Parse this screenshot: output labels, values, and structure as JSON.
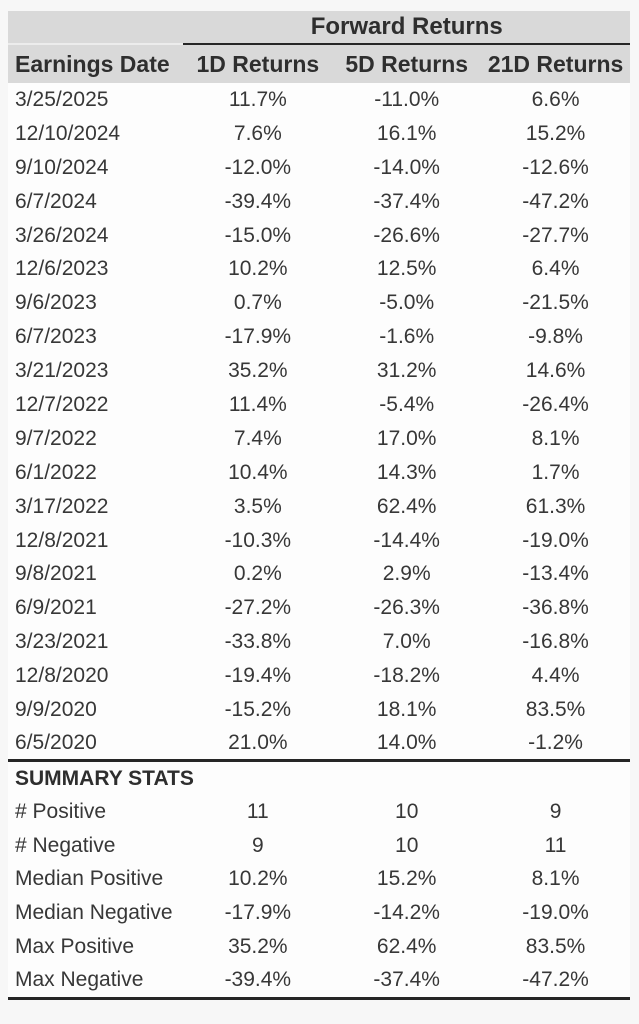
{
  "colors": {
    "header_bg": "#d9d9d9",
    "rule": "#262626",
    "text": "#373737"
  },
  "chart_data": {
    "type": "table",
    "spanner": "Forward Returns",
    "columns": [
      "Earnings Date",
      "1D Returns",
      "5D Returns",
      "21D Returns"
    ],
    "rows": [
      [
        "3/25/2025",
        "11.7%",
        "-11.0%",
        "6.6%"
      ],
      [
        "12/10/2024",
        "7.6%",
        "16.1%",
        "15.2%"
      ],
      [
        "9/10/2024",
        "-12.0%",
        "-14.0%",
        "-12.6%"
      ],
      [
        "6/7/2024",
        "-39.4%",
        "-37.4%",
        "-47.2%"
      ],
      [
        "3/26/2024",
        "-15.0%",
        "-26.6%",
        "-27.7%"
      ],
      [
        "12/6/2023",
        "10.2%",
        "12.5%",
        "6.4%"
      ],
      [
        "9/6/2023",
        "0.7%",
        "-5.0%",
        "-21.5%"
      ],
      [
        "6/7/2023",
        "-17.9%",
        "-1.6%",
        "-9.8%"
      ],
      [
        "3/21/2023",
        "35.2%",
        "31.2%",
        "14.6%"
      ],
      [
        "12/7/2022",
        "11.4%",
        "-5.4%",
        "-26.4%"
      ],
      [
        "9/7/2022",
        "7.4%",
        "17.0%",
        "8.1%"
      ],
      [
        "6/1/2022",
        "10.4%",
        "14.3%",
        "1.7%"
      ],
      [
        "3/17/2022",
        "3.5%",
        "62.4%",
        "61.3%"
      ],
      [
        "12/8/2021",
        "-10.3%",
        "-14.4%",
        "-19.0%"
      ],
      [
        "9/8/2021",
        "0.2%",
        "2.9%",
        "-13.4%"
      ],
      [
        "6/9/2021",
        "-27.2%",
        "-26.3%",
        "-36.8%"
      ],
      [
        "3/23/2021",
        "-33.8%",
        "7.0%",
        "-16.8%"
      ],
      [
        "12/8/2020",
        "-19.4%",
        "-18.2%",
        "4.4%"
      ],
      [
        "9/9/2020",
        "-15.2%",
        "18.1%",
        "83.5%"
      ],
      [
        "6/5/2020",
        "21.0%",
        "14.0%",
        "-1.2%"
      ]
    ],
    "summary_title": "SUMMARY STATS",
    "summary_rows": [
      [
        "# Positive",
        "11",
        "10",
        "9"
      ],
      [
        "# Negative",
        "9",
        "10",
        "11"
      ],
      [
        "Median Positive",
        "10.2%",
        "15.2%",
        "8.1%"
      ],
      [
        "Median Negative",
        "-17.9%",
        "-14.2%",
        "-19.0%"
      ],
      [
        "Max Positive",
        "35.2%",
        "62.4%",
        "83.5%"
      ],
      [
        "Max Negative",
        "-39.4%",
        "-37.4%",
        "-47.2%"
      ]
    ]
  }
}
